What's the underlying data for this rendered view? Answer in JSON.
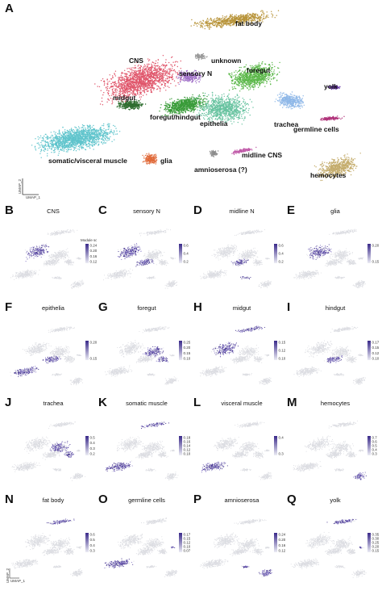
{
  "panelA": {
    "letter": "A",
    "clusters": [
      {
        "label": "fat body",
        "color": "#b8943a"
      },
      {
        "label": "unknown",
        "color": "#9a9a9a"
      },
      {
        "label": "CNS",
        "color": "#e0566b"
      },
      {
        "label": "sensory N",
        "color": "#a070c8"
      },
      {
        "label": "foregut",
        "color": "#5cb84a"
      },
      {
        "label": "yolk",
        "color": "#6a3aa8"
      },
      {
        "label": "midgut",
        "color": "#2f6e30"
      },
      {
        "label": "foregut/hindgut",
        "color": "#3a9c3a"
      },
      {
        "label": "epithelia",
        "color": "#68c3a0"
      },
      {
        "label": "trachea",
        "color": "#8fb8e8"
      },
      {
        "label": "germline cells",
        "color": "#b0337a"
      },
      {
        "label": "somatic/visceral muscle",
        "color": "#5fc4cc"
      },
      {
        "label": "glia",
        "color": "#e06a3a"
      },
      {
        "label": "amnioserosa (?)",
        "color": "#8c8c8c"
      },
      {
        "label": "midline CNS",
        "color": "#c05aa8"
      },
      {
        "label": "hemocytes",
        "color": "#c4ac6c"
      }
    ],
    "axis": {
      "x": "UMAP_1",
      "y": "UMAP_2"
    }
  },
  "legend_title": "Module score",
  "axis_small": {
    "x": "UMAP_1",
    "y": "UMAP_2"
  },
  "panels": [
    {
      "letter": "B",
      "title": "CNS",
      "ticks": [
        "0.24",
        "0.20",
        "0.16",
        "0.12"
      ]
    },
    {
      "letter": "C",
      "title": "sensory N",
      "ticks": [
        "0.6",
        "0.4",
        "0.2"
      ]
    },
    {
      "letter": "D",
      "title": "midline N",
      "ticks": [
        "0.6",
        "0.4",
        "0.2"
      ]
    },
    {
      "letter": "E",
      "title": "glia",
      "ticks": [
        "0.20",
        "0.15"
      ]
    },
    {
      "letter": "F",
      "title": "epithelia",
      "ticks": [
        "0.20",
        "0.15"
      ]
    },
    {
      "letter": "G",
      "title": "foregut",
      "ticks": [
        "0.25",
        "0.20",
        "0.15",
        "0.10"
      ]
    },
    {
      "letter": "H",
      "title": "midgut",
      "ticks": [
        "0.150",
        "0.125",
        "0.100"
      ]
    },
    {
      "letter": "I",
      "title": "hindgut",
      "ticks": [
        "0.175",
        "0.150",
        "0.125",
        "0.100"
      ]
    },
    {
      "letter": "J",
      "title": "trachea",
      "ticks": [
        "0.5",
        "0.4",
        "0.3",
        "0.2"
      ]
    },
    {
      "letter": "K",
      "title": "somatic muscle",
      "ticks": [
        "0.18",
        "0.16",
        "0.14",
        "0.12",
        "0.10"
      ]
    },
    {
      "letter": "L",
      "title": "visceral muscle",
      "ticks": [
        "0.4",
        "0.3"
      ]
    },
    {
      "letter": "M",
      "title": "hemocytes",
      "ticks": [
        "0.7",
        "0.6",
        "0.5",
        "0.4",
        "0.3"
      ]
    },
    {
      "letter": "N",
      "title": "fat body",
      "ticks": [
        "0.6",
        "0.5",
        "0.4",
        "0.3"
      ]
    },
    {
      "letter": "O",
      "title": "germline cells",
      "ticks": [
        "0.175",
        "0.150",
        "0.125",
        "0.100",
        "0.075"
      ]
    },
    {
      "letter": "P",
      "title": "amnioserosa",
      "ticks": [
        "0.24",
        "0.20",
        "0.16",
        "0.12"
      ]
    },
    {
      "letter": "Q",
      "title": "yolk",
      "ticks": [
        "0.35",
        "0.30",
        "0.25",
        "0.20",
        "0.15"
      ]
    }
  ]
}
